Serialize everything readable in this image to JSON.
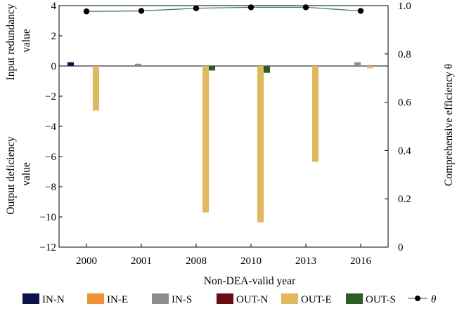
{
  "chart_data": {
    "type": "bar",
    "xlabel": "Non-DEA-valid year",
    "ylabel_left_top": [
      "Input redundancy",
      "value"
    ],
    "ylabel_left_bottom": [
      "Output deficiency",
      "value"
    ],
    "ylabel_right": "Comprehensive efficiency θ",
    "categories": [
      "2000",
      "2001",
      "2008",
      "2010",
      "2013",
      "2016"
    ],
    "ylim_left": [
      -12,
      4
    ],
    "yticks_left": [
      "4",
      "2",
      "0",
      "−2",
      "−4",
      "−6",
      "−8",
      "−10",
      "−12"
    ],
    "ylim_right": [
      0,
      1.0
    ],
    "yticks_right": [
      "1.0",
      "0.8",
      "0.6",
      "0.4",
      "0.2",
      "0"
    ],
    "series": [
      {
        "name": "IN-N",
        "color": "#0d1150",
        "values": [
          0.25,
          0,
          0,
          0,
          0,
          0
        ]
      },
      {
        "name": "IN-E",
        "color": "#f39130",
        "values": [
          0,
          0,
          0,
          0,
          0,
          0
        ]
      },
      {
        "name": "IN-S",
        "color": "#8c8c8c",
        "values": [
          0,
          0.15,
          0,
          0,
          0,
          0.25
        ]
      },
      {
        "name": "OUT-N",
        "color": "#6b0a14",
        "values": [
          0,
          0,
          0,
          0,
          0,
          0
        ]
      },
      {
        "name": "OUT-E",
        "color": "#e2b858",
        "values": [
          -2.95,
          0,
          -9.7,
          -10.35,
          -6.35,
          -0.15
        ]
      },
      {
        "name": "OUT-S",
        "color": "#2a5e22",
        "values": [
          0,
          0,
          -0.3,
          -0.45,
          0,
          0
        ]
      }
    ],
    "line": {
      "name": "θ",
      "color": "#3d7a8c",
      "values": [
        0.976,
        0.978,
        0.989,
        0.993,
        0.993,
        0.978
      ]
    },
    "legend_position": "bottom",
    "grid": false
  }
}
